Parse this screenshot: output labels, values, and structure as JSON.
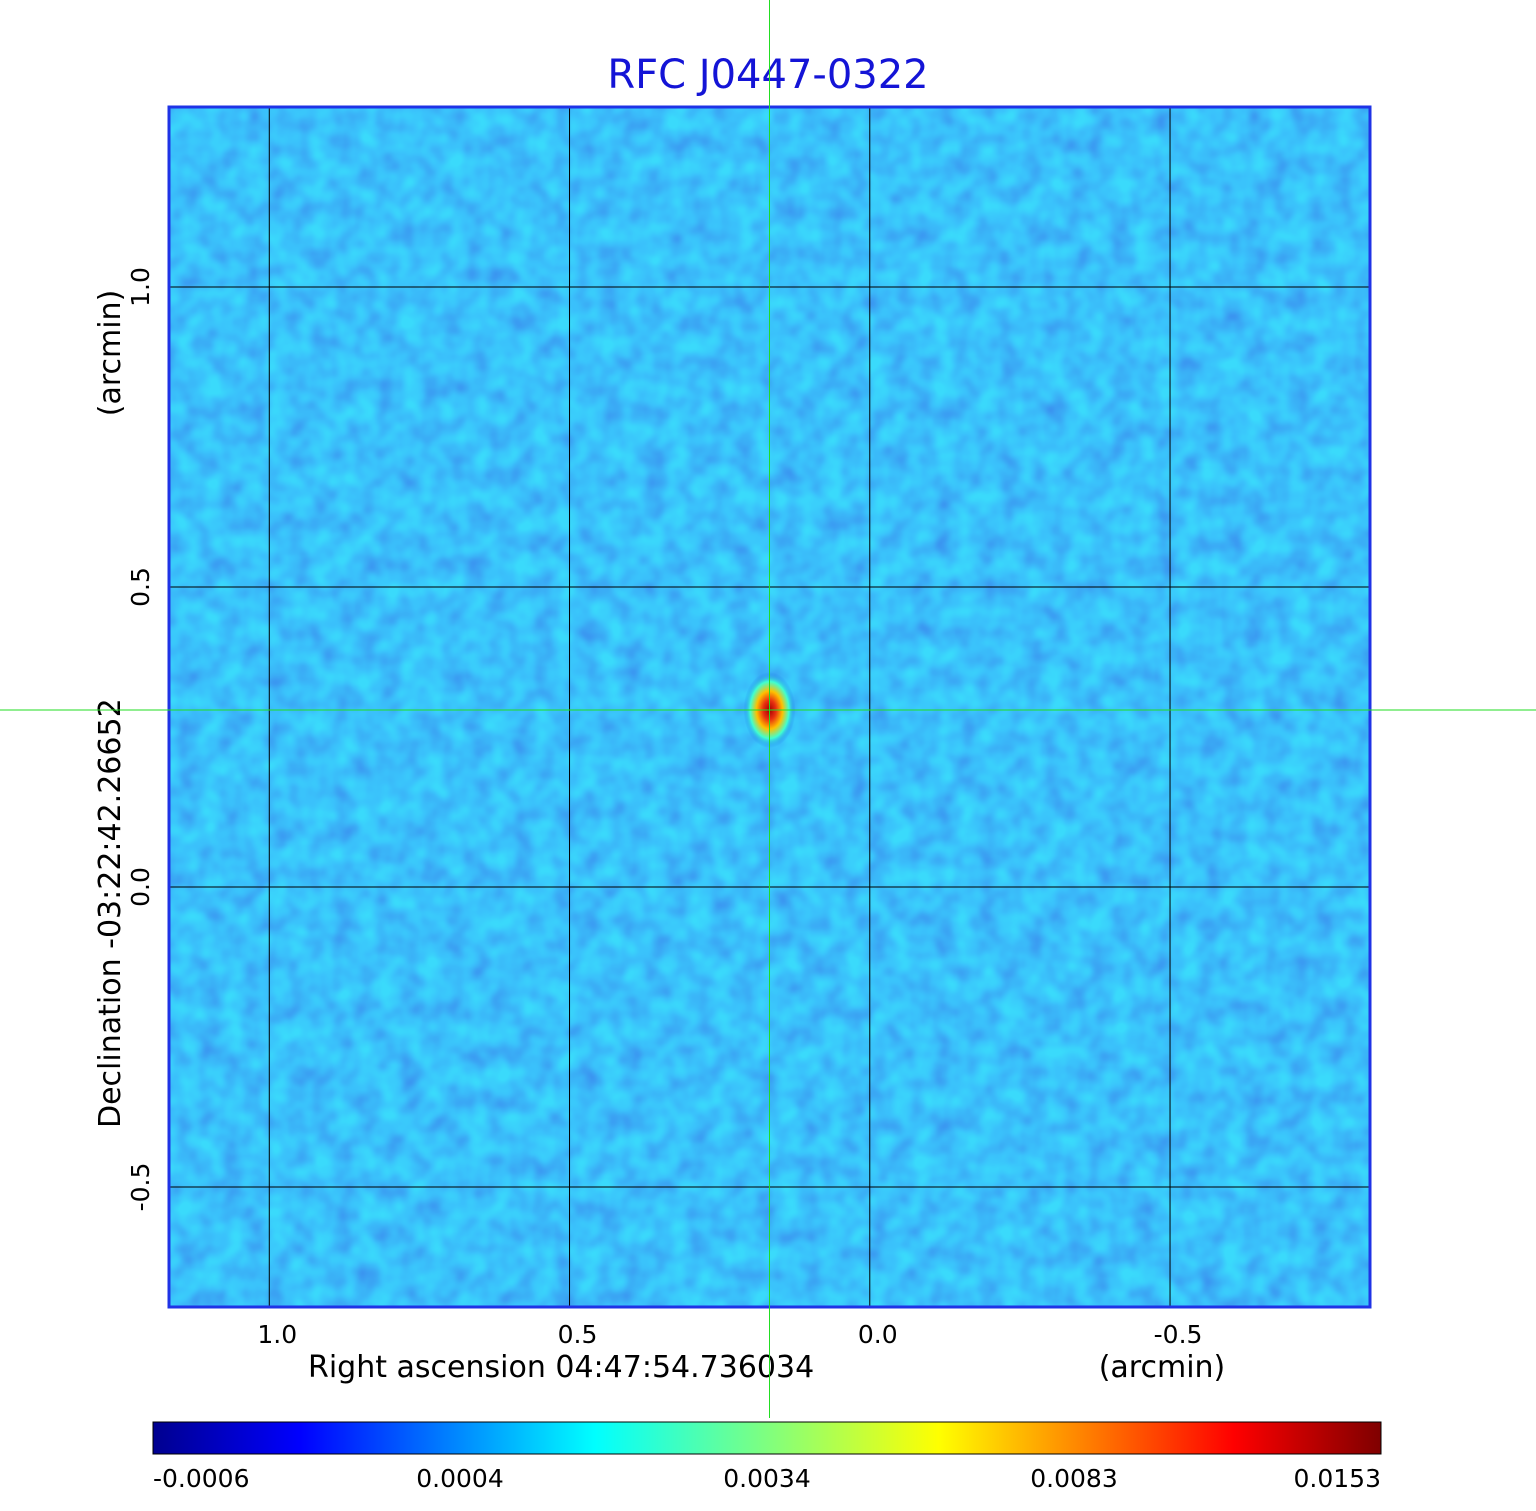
{
  "chart_data": {
    "type": "heatmap",
    "title": "RFC J0447-0322",
    "xlabel": "Right ascension  04:47:54.736034",
    "xunit": "(arcmin)",
    "ylabel": "Declination  -03:22:42.26652",
    "yunit": "(arcmin)",
    "x_ticks": [
      "1.0",
      "0.5",
      "0.0",
      "-0.5"
    ],
    "x_tick_values": [
      1.0,
      0.5,
      0.0,
      -0.5
    ],
    "y_ticks": [
      "1.0",
      "0.5",
      "0.0",
      "-0.5"
    ],
    "y_tick_values": [
      1.0,
      0.5,
      0.0,
      -0.5
    ],
    "xlim": [
      1.167,
      -0.833
    ],
    "ylim": [
      -0.7,
      1.3
    ],
    "grid": true,
    "crosshair": {
      "x": 0.167,
      "y": 0.295,
      "color": "#22dd22"
    },
    "peak": {
      "x": 0.167,
      "y": 0.295,
      "value": 0.0153
    },
    "colorbar": {
      "colormap": "jet",
      "labels": [
        "-0.0006",
        "0.0004",
        "0.0034",
        "0.0083",
        "0.0153"
      ],
      "min": -0.0006,
      "max": 0.0153
    },
    "colors": {
      "title": "#1414d6",
      "frame": "#1f33e6",
      "grid": "#000000",
      "crosshair": "#22dd22"
    }
  }
}
